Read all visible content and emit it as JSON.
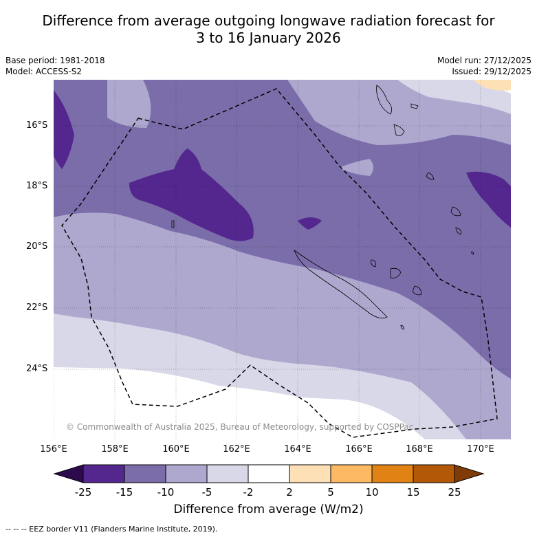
{
  "title": {
    "line1": "Difference from average outgoing longwave radiation forecast for",
    "line2": "3 to 16 January 2026"
  },
  "meta": {
    "base_period": "Base period: 1981-2018",
    "model": "Model: ACCESS-S2",
    "model_run": "Model run: 27/12/2025",
    "issued": "Issued: 29/12/2025"
  },
  "axes": {
    "lat_labels": [
      "16°S",
      "18°S",
      "20°S",
      "22°S",
      "24°S"
    ],
    "lon_labels": [
      "156°E",
      "158°E",
      "160°E",
      "162°E",
      "164°E",
      "166°E",
      "168°E",
      "170°E"
    ]
  },
  "colorbar": {
    "ticks": [
      "-25",
      "-15",
      "-10",
      "-5",
      "-2",
      "2",
      "5",
      "10",
      "15",
      "25"
    ],
    "label": "Difference from average (W/m2)",
    "colors": {
      "below_min": "#2d0a4e",
      "c_25_15": "#54278f",
      "c_15_10": "#7b6daa",
      "c_10_5": "#aea8ce",
      "c_5_2": "#d8d8e9",
      "c_2_2": "#ffffff",
      "c2_5": "#fee0b6",
      "c5_10": "#fdb863",
      "c10_15": "#e08214",
      "c15_25": "#b35806",
      "above_max": "#7f3b08"
    }
  },
  "copyright": "© Commonwealth of Australia 2025, Bureau of Meteorology, supported by COSPPac",
  "footer": "--  --  -- EEZ border V11 (Flanders Marine Institute, 2019)."
}
